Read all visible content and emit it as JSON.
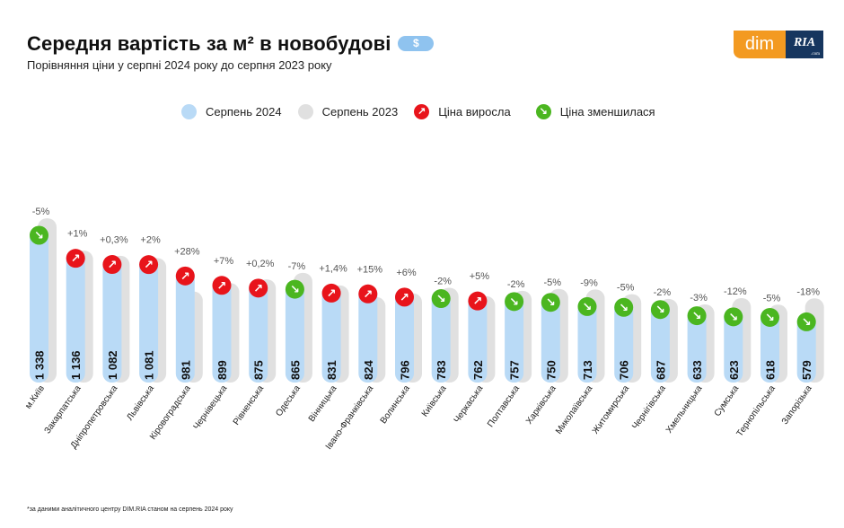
{
  "header": {
    "title": "Середня вартість за м² в новобудові",
    "currency_badge": "$",
    "subtitle": "Порівняння ціни у серпні 2024 року до серпня 2023 року"
  },
  "logo": {
    "left": "dim",
    "right": "RIA",
    "right_sub": ".com"
  },
  "legend": {
    "items": [
      {
        "label": "Серпень 2024",
        "kind": "swatch",
        "color": "#b9daf6"
      },
      {
        "label": "Серпень 2023",
        "kind": "swatch",
        "color": "#e0e0e0"
      },
      {
        "label": "Ціна виросла",
        "kind": "up-arrow-icon",
        "color": "#e8141b"
      },
      {
        "label": "Ціна зменшилася",
        "kind": "down-arrow-icon",
        "color": "#4bb620"
      }
    ]
  },
  "colors": {
    "bar_2024": "#b9daf6",
    "bar_2023": "#e0e0e0",
    "up": "#e8141b",
    "down": "#4bb620",
    "pct_text": "#555555"
  },
  "chart_data": {
    "type": "bar",
    "title": "Середня вартість за м² в новобудові",
    "subtitle": "Порівняння ціни у серпні 2024 року до серпня 2023 року",
    "xlabel": "",
    "ylabel": "",
    "grid": false,
    "legend_position": "top",
    "unit": "$",
    "categories": [
      "м.Київ",
      "Закарпатська",
      "Дніпропетровська",
      "Львівська",
      "Кіровоградська",
      "Чернівецька",
      "Рівненська",
      "Одеська",
      "Вінницька",
      "Івано-Франківська",
      "Волинська",
      "Київська",
      "Черкаська",
      "Полтавська",
      "Харківська",
      "Миколаївська",
      "Житомирська",
      "Чернігівська",
      "Хмельницька",
      "Сумська",
      "Тернопільська",
      "Запорізька"
    ],
    "series": [
      {
        "name": "Серпень 2024",
        "values": [
          1338,
          1136,
          1082,
          1081,
          981,
          899,
          875,
          865,
          831,
          824,
          796,
          783,
          762,
          757,
          750,
          713,
          706,
          687,
          633,
          623,
          618,
          579
        ],
        "labels": [
          "1 338",
          "1 136",
          "1 082",
          "1 081",
          "981",
          "899",
          "875",
          "865",
          "831",
          "824",
          "796",
          "783",
          "762",
          "757",
          "750",
          "713",
          "706",
          "687",
          "633",
          "623",
          "618",
          "579"
        ]
      },
      {
        "name": "Серпень 2023",
        "values": [
          1408,
          1125,
          1079,
          1060,
          766,
          840,
          873,
          930,
          820,
          717,
          751,
          799,
          726,
          772,
          789,
          784,
          743,
          701,
          653,
          708,
          651,
          706
        ]
      }
    ],
    "change_pct": [
      -5,
      1,
      0.3,
      2,
      28,
      7,
      0.2,
      -7,
      1.4,
      15,
      6,
      -2,
      5,
      -2,
      -5,
      -9,
      -5,
      -2,
      -3,
      -12,
      -5,
      -18
    ],
    "change_labels": [
      "-5%",
      "+1%",
      "+0,3%",
      "+2%",
      "+28%",
      "+7%",
      "+0,2%",
      "-7%",
      "+1,4%",
      "+15%",
      "+6%",
      "-2%",
      "+5%",
      "-2%",
      "-5%",
      "-9%",
      "-5%",
      "-2%",
      "-3%",
      "-12%",
      "-5%",
      "-18%"
    ],
    "ylim": [
      0,
      1408
    ]
  },
  "footnote": "*за даними аналітичного центру DIM.RIA станом на серпень 2024 року"
}
